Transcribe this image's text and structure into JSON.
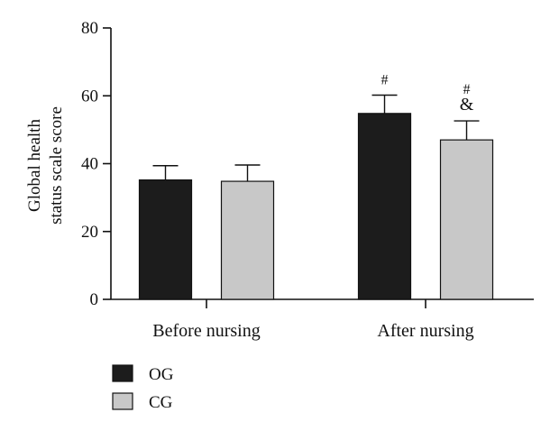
{
  "chart_data": {
    "type": "bar",
    "title": "",
    "categories": [
      "Before nursing",
      "After nursing"
    ],
    "ylabel": "Global health status scale score",
    "ylabel_lines": [
      "Global health",
      "status scale score"
    ],
    "xlabel": "",
    "ylim": [
      0,
      80
    ],
    "yticks": [
      0,
      20,
      40,
      60,
      80
    ],
    "series": [
      {
        "name": "OG",
        "color": "#1c1c1c",
        "values": [
          35.2,
          54.8
        ],
        "errors": [
          4.2,
          5.4
        ],
        "annotations": [
          "",
          "#"
        ]
      },
      {
        "name": "CG",
        "color": "#c8c8c8",
        "values": [
          34.8,
          47.0
        ],
        "errors": [
          4.8,
          5.6
        ],
        "annotations": [
          "",
          "#\n&"
        ]
      }
    ],
    "grid": false,
    "legend_position": "bottom-left"
  }
}
